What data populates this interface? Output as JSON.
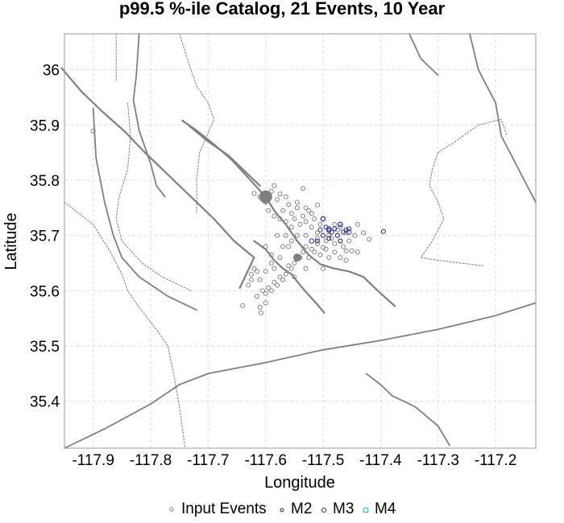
{
  "chart_data": {
    "type": "scatter",
    "title": "p99.5 %-ile Catalog, 21 Events, 10 Year",
    "xlabel": "Longitude",
    "ylabel": "Latitude",
    "xlim": [
      -117.95,
      -117.13
    ],
    "ylim": [
      35.315,
      36.065
    ],
    "x_ticks": [
      "-117.9",
      "-117.8",
      "-117.7",
      "-117.6",
      "-117.5",
      "-117.4",
      "-117.3",
      "-117.2"
    ],
    "y_ticks": [
      "35.4",
      "35.5",
      "35.6",
      "35.7",
      "35.8",
      "35.9",
      "36"
    ],
    "grid": true,
    "legend_position": "bottom",
    "legend": [
      "Input Events",
      "M2",
      "M3",
      "M4"
    ],
    "series": [
      {
        "name": "Input Events",
        "color": "#808080",
        "size": 2.5,
        "points": [
          [
            -117.9,
            35.889
          ],
          [
            -117.61,
            35.77
          ],
          [
            -117.595,
            35.768
          ],
          [
            -117.62,
            35.776
          ],
          [
            -117.605,
            35.772
          ],
          [
            -117.59,
            35.78
          ],
          [
            -117.58,
            35.765
          ],
          [
            -117.6,
            35.76
          ],
          [
            -117.575,
            35.775
          ],
          [
            -117.585,
            35.79
          ],
          [
            -117.565,
            35.77
          ],
          [
            -117.56,
            35.756
          ],
          [
            -117.57,
            35.745
          ],
          [
            -117.555,
            35.74
          ],
          [
            -117.545,
            35.75
          ],
          [
            -117.55,
            35.73
          ],
          [
            -117.54,
            35.72
          ],
          [
            -117.535,
            35.735
          ],
          [
            -117.53,
            35.725
          ],
          [
            -117.525,
            35.745
          ],
          [
            -117.52,
            35.715
          ],
          [
            -117.515,
            35.73
          ],
          [
            -117.51,
            35.705
          ],
          [
            -117.505,
            35.72
          ],
          [
            -117.5,
            35.7
          ],
          [
            -117.495,
            35.69
          ],
          [
            -117.49,
            35.708
          ],
          [
            -117.485,
            35.695
          ],
          [
            -117.48,
            35.685
          ],
          [
            -117.475,
            35.7
          ],
          [
            -117.47,
            35.69
          ],
          [
            -117.465,
            35.68
          ],
          [
            -117.46,
            35.672
          ],
          [
            -117.455,
            35.69
          ],
          [
            -117.45,
            35.672
          ],
          [
            -117.445,
            35.7
          ],
          [
            -117.43,
            35.705
          ],
          [
            -117.44,
            35.72
          ],
          [
            -117.47,
            35.715
          ],
          [
            -117.48,
            35.72
          ],
          [
            -117.5,
            35.678
          ],
          [
            -117.51,
            35.685
          ],
          [
            -117.515,
            35.67
          ],
          [
            -117.52,
            35.675
          ],
          [
            -117.525,
            35.66
          ],
          [
            -117.53,
            35.68
          ],
          [
            -117.535,
            35.67
          ],
          [
            -117.54,
            35.66
          ],
          [
            -117.545,
            35.66
          ],
          [
            -117.55,
            35.65
          ],
          [
            -117.555,
            35.64
          ],
          [
            -117.56,
            35.645
          ],
          [
            -117.565,
            35.63
          ],
          [
            -117.57,
            35.62
          ],
          [
            -117.575,
            35.625
          ],
          [
            -117.58,
            35.61
          ],
          [
            -117.585,
            35.615
          ],
          [
            -117.59,
            35.6
          ],
          [
            -117.595,
            35.605
          ],
          [
            -117.6,
            35.595
          ],
          [
            -117.605,
            35.6
          ],
          [
            -117.61,
            35.62
          ],
          [
            -117.615,
            35.635
          ],
          [
            -117.62,
            35.64
          ],
          [
            -117.625,
            35.62
          ],
          [
            -117.6,
            35.635
          ],
          [
            -117.59,
            35.65
          ],
          [
            -117.585,
            35.64
          ],
          [
            -117.575,
            35.66
          ],
          [
            -117.57,
            35.68
          ],
          [
            -117.58,
            35.7
          ],
          [
            -117.565,
            35.7
          ],
          [
            -117.555,
            35.69
          ],
          [
            -117.545,
            35.7
          ],
          [
            -117.555,
            35.715
          ],
          [
            -117.565,
            35.725
          ],
          [
            -117.575,
            35.73
          ],
          [
            -117.585,
            35.735
          ],
          [
            -117.595,
            35.745
          ],
          [
            -117.53,
            35.75
          ],
          [
            -117.52,
            35.74
          ],
          [
            -117.51,
            35.755
          ],
          [
            -117.535,
            35.785
          ],
          [
            -117.545,
            35.76
          ],
          [
            -117.49,
            35.66
          ],
          [
            -117.48,
            35.67
          ],
          [
            -117.47,
            35.66
          ],
          [
            -117.505,
            35.665
          ],
          [
            -117.495,
            35.675
          ],
          [
            -117.42,
            35.693
          ],
          [
            -117.44,
            35.67
          ],
          [
            -117.46,
            35.655
          ],
          [
            -117.5,
            35.64
          ],
          [
            -117.53,
            35.64
          ],
          [
            -117.55,
            35.625
          ],
          [
            -117.6,
            35.578
          ],
          [
            -117.61,
            35.57
          ],
          [
            -117.608,
            35.56
          ],
          [
            -117.64,
            35.573
          ],
          [
            -117.615,
            35.59
          ],
          [
            -117.59,
            35.665
          ],
          [
            -117.6,
            35.68
          ],
          [
            -117.625,
            35.63
          ],
          [
            -117.63,
            35.61
          ],
          [
            -117.56,
            35.68
          ],
          [
            -117.53,
            35.7
          ],
          [
            -117.51,
            35.695
          ],
          [
            -117.49,
            35.7
          ],
          [
            -117.475,
            35.71
          ],
          [
            -117.46,
            35.705
          ]
        ]
      },
      {
        "name": "M2",
        "color": "#1a237e",
        "size": 2.5,
        "points": [
          [
            -117.5,
            35.73
          ],
          [
            -117.495,
            35.715
          ],
          [
            -117.49,
            35.71
          ],
          [
            -117.485,
            35.706
          ],
          [
            -117.47,
            35.72
          ],
          [
            -117.465,
            35.706
          ],
          [
            -117.46,
            35.71
          ],
          [
            -117.475,
            35.7
          ],
          [
            -117.505,
            35.71
          ],
          [
            -117.48,
            35.712
          ],
          [
            -117.455,
            35.712
          ],
          [
            -117.395,
            35.707
          ],
          [
            -117.49,
            35.695
          ],
          [
            -117.47,
            35.69
          ],
          [
            -117.5,
            35.7
          ],
          [
            -117.51,
            35.69
          ]
        ]
      },
      {
        "name": "M3",
        "color": "#3333bb",
        "size": 2.8,
        "points": [
          [
            -117.5,
            35.73
          ],
          [
            -117.47,
            35.72
          ],
          [
            -117.49,
            35.712
          ],
          [
            -117.455,
            35.706
          ],
          [
            -117.52,
            35.69
          ]
        ]
      },
      {
        "name": "M4",
        "color": "#00aacc",
        "size": 3.2,
        "points": []
      }
    ]
  }
}
